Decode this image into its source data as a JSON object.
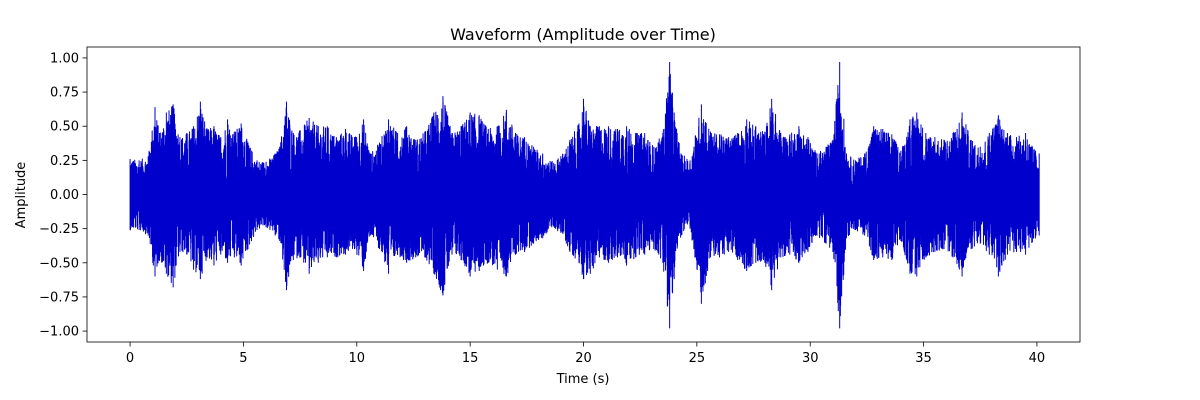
{
  "chart_data": {
    "type": "line",
    "title": "Waveform (Amplitude over Time)",
    "xlabel": "Time (s)",
    "ylabel": "Amplitude",
    "xlim": [
      -1.9,
      41.9
    ],
    "ylim": [
      -1.08,
      1.08
    ],
    "xticks": [
      0,
      5,
      10,
      15,
      20,
      25,
      30,
      35,
      40
    ],
    "yticks": [
      -1.0,
      -0.75,
      -0.5,
      -0.25,
      0.0,
      0.25,
      0.5,
      0.75,
      1.0
    ],
    "xtick_labels": [
      "0",
      "5",
      "10",
      "15",
      "20",
      "25",
      "30",
      "35",
      "40"
    ],
    "ytick_labels": [
      "−1.00",
      "−0.75",
      "−0.50",
      "−0.25",
      "0.00",
      "0.25",
      "0.50",
      "0.75",
      "1.00"
    ],
    "grid": false,
    "series": [
      {
        "color": "#0000cc",
        "time_range": [
          0.0,
          40.1
        ],
        "envelope": [
          [
            0.0,
            0.26,
            -0.26
          ],
          [
            0.4,
            0.25,
            -0.26
          ],
          [
            0.8,
            0.28,
            -0.3
          ],
          [
            1.1,
            0.64,
            -0.6
          ],
          [
            1.3,
            0.45,
            -0.48
          ],
          [
            1.6,
            0.6,
            -0.58
          ],
          [
            1.9,
            0.66,
            -0.68
          ],
          [
            2.2,
            0.42,
            -0.42
          ],
          [
            2.5,
            0.45,
            -0.44
          ],
          [
            2.8,
            0.5,
            -0.55
          ],
          [
            3.1,
            0.68,
            -0.62
          ],
          [
            3.4,
            0.48,
            -0.46
          ],
          [
            3.7,
            0.5,
            -0.52
          ],
          [
            4.0,
            0.42,
            -0.44
          ],
          [
            4.3,
            0.55,
            -0.5
          ],
          [
            4.6,
            0.46,
            -0.46
          ],
          [
            4.9,
            0.52,
            -0.52
          ],
          [
            5.2,
            0.38,
            -0.4
          ],
          [
            5.6,
            0.25,
            -0.26
          ],
          [
            6.0,
            0.24,
            -0.24
          ],
          [
            6.4,
            0.3,
            -0.3
          ],
          [
            6.6,
            0.35,
            -0.34
          ],
          [
            6.9,
            0.68,
            -0.7
          ],
          [
            7.2,
            0.45,
            -0.48
          ],
          [
            7.5,
            0.47,
            -0.46
          ],
          [
            7.9,
            0.56,
            -0.58
          ],
          [
            8.3,
            0.5,
            -0.5
          ],
          [
            8.7,
            0.5,
            -0.46
          ],
          [
            9.1,
            0.42,
            -0.46
          ],
          [
            9.5,
            0.48,
            -0.44
          ],
          [
            9.9,
            0.42,
            -0.4
          ],
          [
            10.3,
            0.55,
            -0.56
          ],
          [
            10.6,
            0.3,
            -0.3
          ],
          [
            11.0,
            0.38,
            -0.4
          ],
          [
            11.4,
            0.55,
            -0.58
          ],
          [
            11.8,
            0.45,
            -0.44
          ],
          [
            12.2,
            0.5,
            -0.5
          ],
          [
            12.6,
            0.4,
            -0.46
          ],
          [
            13.0,
            0.46,
            -0.46
          ],
          [
            13.4,
            0.6,
            -0.58
          ],
          [
            13.8,
            0.72,
            -0.74
          ],
          [
            14.2,
            0.45,
            -0.44
          ],
          [
            14.6,
            0.5,
            -0.48
          ],
          [
            15.0,
            0.6,
            -0.6
          ],
          [
            15.4,
            0.58,
            -0.56
          ],
          [
            15.8,
            0.48,
            -0.5
          ],
          [
            16.2,
            0.5,
            -0.55
          ],
          [
            16.6,
            0.62,
            -0.6
          ],
          [
            17.0,
            0.45,
            -0.44
          ],
          [
            17.4,
            0.42,
            -0.42
          ],
          [
            17.8,
            0.35,
            -0.36
          ],
          [
            18.2,
            0.3,
            -0.32
          ],
          [
            18.6,
            0.24,
            -0.24
          ],
          [
            19.0,
            0.28,
            -0.28
          ],
          [
            19.4,
            0.4,
            -0.42
          ],
          [
            19.8,
            0.52,
            -0.5
          ],
          [
            20.0,
            0.7,
            -0.62
          ],
          [
            20.3,
            0.5,
            -0.58
          ],
          [
            20.7,
            0.5,
            -0.46
          ],
          [
            21.1,
            0.5,
            -0.5
          ],
          [
            21.5,
            0.48,
            -0.46
          ],
          [
            21.9,
            0.5,
            -0.52
          ],
          [
            22.3,
            0.45,
            -0.46
          ],
          [
            22.7,
            0.45,
            -0.44
          ],
          [
            23.1,
            0.35,
            -0.4
          ],
          [
            23.5,
            0.45,
            -0.5
          ],
          [
            23.8,
            0.97,
            -0.98
          ],
          [
            24.0,
            0.6,
            -0.62
          ],
          [
            24.3,
            0.3,
            -0.3
          ],
          [
            24.7,
            0.25,
            -0.25
          ],
          [
            25.2,
            0.66,
            -0.8
          ],
          [
            25.6,
            0.46,
            -0.46
          ],
          [
            26.0,
            0.44,
            -0.46
          ],
          [
            26.4,
            0.42,
            -0.42
          ],
          [
            26.8,
            0.45,
            -0.48
          ],
          [
            27.2,
            0.55,
            -0.56
          ],
          [
            27.6,
            0.5,
            -0.5
          ],
          [
            28.0,
            0.46,
            -0.5
          ],
          [
            28.3,
            0.7,
            -0.7
          ],
          [
            28.7,
            0.45,
            -0.46
          ],
          [
            29.1,
            0.44,
            -0.44
          ],
          [
            29.5,
            0.5,
            -0.5
          ],
          [
            29.9,
            0.42,
            -0.42
          ],
          [
            30.3,
            0.3,
            -0.3
          ],
          [
            30.7,
            0.35,
            -0.36
          ],
          [
            31.0,
            0.4,
            -0.42
          ],
          [
            31.3,
            0.97,
            -0.98
          ],
          [
            31.6,
            0.3,
            -0.32
          ],
          [
            32.0,
            0.25,
            -0.26
          ],
          [
            32.4,
            0.3,
            -0.3
          ],
          [
            32.8,
            0.5,
            -0.48
          ],
          [
            33.2,
            0.48,
            -0.46
          ],
          [
            33.6,
            0.44,
            -0.48
          ],
          [
            34.0,
            0.32,
            -0.34
          ],
          [
            34.4,
            0.55,
            -0.58
          ],
          [
            34.7,
            0.6,
            -0.6
          ],
          [
            35.1,
            0.45,
            -0.46
          ],
          [
            35.5,
            0.42,
            -0.42
          ],
          [
            35.9,
            0.4,
            -0.4
          ],
          [
            36.3,
            0.45,
            -0.46
          ],
          [
            36.7,
            0.6,
            -0.6
          ],
          [
            37.1,
            0.4,
            -0.4
          ],
          [
            37.5,
            0.35,
            -0.36
          ],
          [
            37.9,
            0.45,
            -0.44
          ],
          [
            38.3,
            0.58,
            -0.6
          ],
          [
            38.7,
            0.45,
            -0.44
          ],
          [
            39.1,
            0.42,
            -0.42
          ],
          [
            39.5,
            0.45,
            -0.44
          ],
          [
            39.8,
            0.35,
            -0.35
          ],
          [
            40.1,
            0.3,
            -0.3
          ]
        ]
      }
    ]
  }
}
